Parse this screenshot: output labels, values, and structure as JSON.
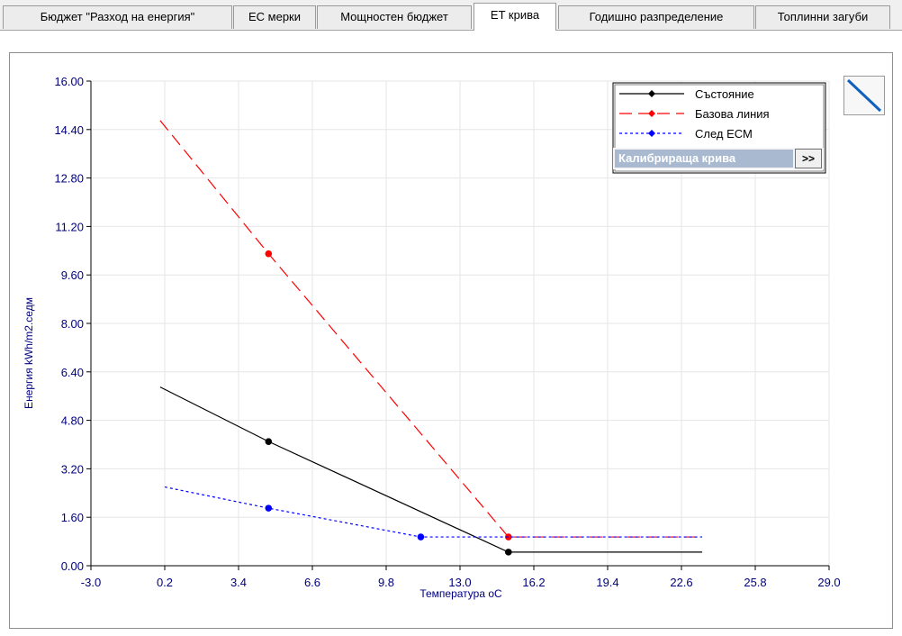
{
  "tabs": [
    {
      "label": "Бюджет \"Разход на енергия\"",
      "active": false
    },
    {
      "label": "ЕС мерки",
      "active": false
    },
    {
      "label": "Мощностен бюджет",
      "active": false
    },
    {
      "label": "ET крива",
      "active": true
    },
    {
      "label": "Годишно разпределение",
      "active": false
    },
    {
      "label": "Топлинни загуби",
      "active": false
    }
  ],
  "calibration": {
    "label": "Калибрираща крива",
    "button": ">>"
  },
  "tool_icon": "diagonal-line-icon",
  "chart_data": {
    "type": "line",
    "xlabel": "Температура oC",
    "ylabel": "Енергия kWh/m2.седм",
    "xlim": [
      -3.0,
      29.0
    ],
    "ylim": [
      0.0,
      16.0
    ],
    "x_ticks": [
      "-3.0",
      "0.2",
      "3.4",
      "6.6",
      "9.8",
      "13.0",
      "16.2",
      "19.4",
      "22.6",
      "25.8",
      "29.0"
    ],
    "y_ticks": [
      "0.00",
      "1.60",
      "3.20",
      "4.80",
      "6.40",
      "8.00",
      "9.60",
      "11.20",
      "12.80",
      "14.40",
      "16.00"
    ],
    "grid": true,
    "legend_position": "top-right",
    "series": [
      {
        "name": "Състояние",
        "color": "#000000",
        "dash": "solid",
        "x": [
          0.0,
          4.7,
          15.1,
          23.5
        ],
        "y": [
          5.9,
          4.1,
          0.45,
          0.45
        ],
        "markers": [
          1,
          2
        ]
      },
      {
        "name": "Базова линия",
        "color": "#ff0000",
        "dash": "long",
        "x": [
          0.0,
          4.7,
          15.1,
          23.5
        ],
        "y": [
          14.7,
          10.3,
          0.95,
          0.95
        ],
        "markers": [
          1,
          2
        ]
      },
      {
        "name": "След ЕСМ",
        "color": "#0000ff",
        "dash": "dot",
        "x": [
          0.2,
          4.7,
          11.3,
          15.1,
          23.5
        ],
        "y": [
          2.6,
          1.9,
          0.95,
          0.95,
          0.95
        ],
        "markers": [
          1,
          2
        ]
      }
    ]
  }
}
